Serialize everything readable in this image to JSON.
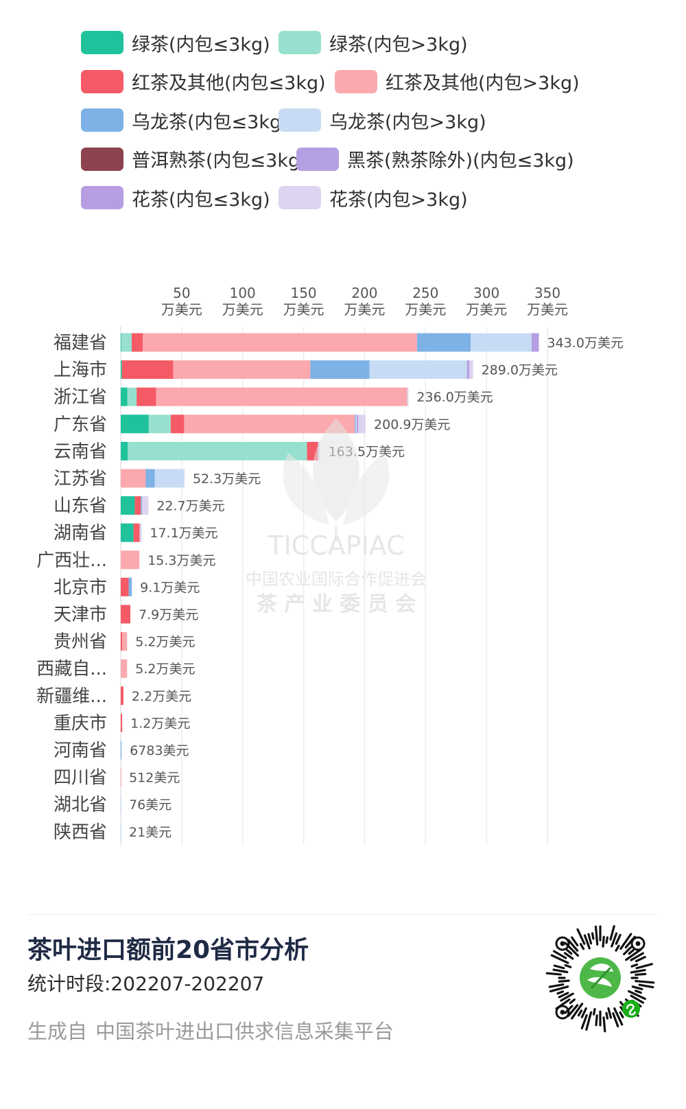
{
  "legend": {
    "items": [
      {
        "label": "绿茶(内包≤3kg)",
        "color": "#20c29b"
      },
      {
        "label": "绿茶(内包>3kg)",
        "color": "#97e0cf"
      },
      {
        "label": "红茶及其他(内包≤3kg)",
        "color": "#f45b66"
      },
      {
        "label": "红茶及其他(内包>3kg)",
        "color": "#fba9ae"
      },
      {
        "label": "乌龙茶(内包≤3kg)",
        "color": "#7eb1e6"
      },
      {
        "label": "乌龙茶(内包>3kg)",
        "color": "#c7dcf4"
      },
      {
        "label": "普洱熟茶(内包≤3kg)",
        "color": "#8c434d"
      },
      {
        "label": "黑茶(熟茶除外)(内包≤3kg)",
        "color": "#b3a0e2"
      },
      {
        "label": "花茶(内包≤3kg)",
        "color": "#b79ee3"
      },
      {
        "label": "花茶(内包>3kg)",
        "color": "#ddd4f1"
      }
    ]
  },
  "chart_data": {
    "type": "bar",
    "orientation": "horizontal",
    "stacked": true,
    "x_ticks": [
      {
        "value": 50,
        "num": "50",
        "unit": "万美元"
      },
      {
        "value": 100,
        "num": "100",
        "unit": "万美元"
      },
      {
        "value": 150,
        "num": "150",
        "unit": "万美元"
      },
      {
        "value": 200,
        "num": "200",
        "unit": "万美元"
      },
      {
        "value": 250,
        "num": "250",
        "unit": "万美元"
      },
      {
        "value": 300,
        "num": "300",
        "unit": "万美元"
      },
      {
        "value": 350,
        "num": "350",
        "unit": "万美元"
      }
    ],
    "xlim": [
      0,
      350
    ],
    "axis_position": "top",
    "grid": true,
    "categories": [
      "福建省",
      "上海市",
      "浙江省",
      "广东省",
      "云南省",
      "江苏省",
      "山东省",
      "湖南省",
      "广西壮...",
      "北京市",
      "天津市",
      "贵州省",
      "西藏自...",
      "新疆维...",
      "重庆市",
      "河南省",
      "四川省",
      "湖北省",
      "陕西省"
    ],
    "totals": [
      "343.0万美元",
      "289.0万美元",
      "236.0万美元",
      "200.9万美元",
      "163.5万美元",
      "52.3万美元",
      "22.7万美元",
      "17.1万美元",
      "15.3万美元",
      "9.1万美元",
      "7.9万美元",
      "5.2万美元",
      "5.2万美元",
      "2.2万美元",
      "1.2万美元",
      "6783美元",
      "512美元",
      "76美元",
      "21美元"
    ],
    "series": [
      {
        "name": "绿茶(内包≤3kg)",
        "color": "#20c29b",
        "values": [
          0.5,
          1.0,
          5.5,
          23.0,
          5.8,
          0,
          11.5,
          10.5,
          0,
          0,
          0,
          0,
          0,
          0,
          0,
          0,
          0,
          0,
          0
        ]
      },
      {
        "name": "绿茶(内包>3kg)",
        "color": "#97e0cf",
        "values": [
          8.5,
          0,
          7.5,
          18.0,
          147.0,
          0,
          0,
          0,
          0,
          0,
          0,
          0,
          0,
          0,
          0,
          0,
          0,
          0,
          0
        ]
      },
      {
        "name": "红茶及其他(内包≤3kg)",
        "color": "#f45b66",
        "values": [
          9.0,
          42.0,
          16.0,
          11.0,
          9.0,
          0,
          5.0,
          5.0,
          0,
          6.5,
          7.9,
          1.2,
          0,
          2.2,
          1.2,
          0,
          0.04,
          0.0,
          0.0
        ]
      },
      {
        "name": "红茶及其他(内包>3kg)",
        "color": "#fba9ae",
        "values": [
          225.0,
          112.5,
          206.0,
          140.0,
          0,
          20.5,
          0,
          0,
          15.3,
          0,
          0,
          4.0,
          5.2,
          0,
          0,
          0,
          0,
          0,
          0
        ]
      },
      {
        "name": "乌龙茶(内包≤3kg)",
        "color": "#7eb1e6",
        "values": [
          44.0,
          48.5,
          0,
          0.8,
          0,
          7.5,
          0.9,
          0,
          0,
          2.6,
          0,
          0,
          0,
          0,
          0,
          0.68,
          0,
          0,
          0
        ]
      },
      {
        "name": "乌龙茶(内包>3kg)",
        "color": "#c7dcf4",
        "values": [
          50.0,
          80.0,
          0,
          0.8,
          0,
          24.3,
          0,
          0,
          0,
          0,
          0,
          0,
          0,
          0,
          0,
          0,
          0,
          0,
          0
        ]
      },
      {
        "name": "普洱熟茶(内包≤3kg)",
        "color": "#8c434d",
        "values": [
          0,
          0,
          0,
          0,
          0,
          0,
          0,
          0,
          0,
          0,
          0,
          0,
          0,
          0,
          0,
          0,
          0,
          0,
          0
        ]
      },
      {
        "name": "黑茶(熟茶除外)(内包≤3kg)",
        "color": "#b3a0e2",
        "values": [
          0,
          2.0,
          0,
          0,
          0,
          0,
          0,
          0,
          0,
          0,
          0,
          0,
          0,
          0,
          0,
          0,
          0,
          0,
          0
        ]
      },
      {
        "name": "花茶(内包≤3kg)",
        "color": "#b79ee3",
        "values": [
          6.0,
          0,
          0,
          1.3,
          0,
          0,
          0,
          0,
          0,
          0,
          0,
          0,
          0,
          0,
          0,
          0,
          0,
          0,
          0
        ]
      },
      {
        "name": "花茶(内包>3kg)",
        "color": "#ddd4f1",
        "values": [
          0,
          3.0,
          1.0,
          6.0,
          1.7,
          0,
          5.3,
          1.6,
          0,
          0,
          0,
          0,
          0,
          0,
          0,
          0,
          0,
          0,
          0
        ]
      }
    ]
  },
  "watermark": {
    "brand": "TICCAPIAC",
    "line1": "中国农业国际合作促进会",
    "line2": "茶 产 业 委 员 会"
  },
  "footer": {
    "title": "茶叶进口额前20省市分析",
    "period": "统计时段:202207-202207",
    "source_prefix": "生成自",
    "source_name": "中国茶叶进出口供求信息采集平台"
  }
}
